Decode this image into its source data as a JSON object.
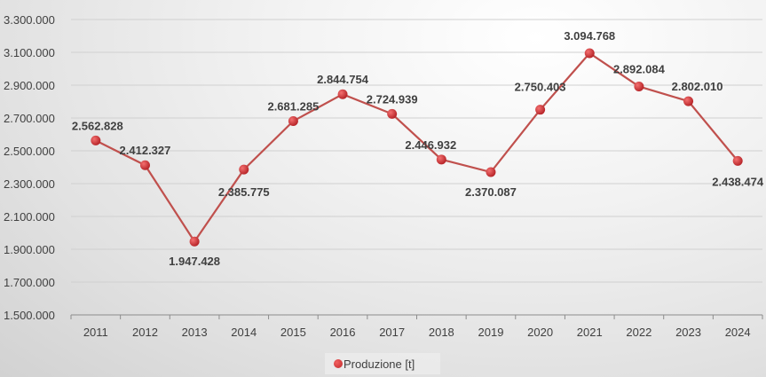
{
  "chart_data": {
    "type": "line",
    "title": "",
    "xlabel": "",
    "ylabel": "",
    "categories": [
      "2011",
      "2012",
      "2013",
      "2014",
      "2015",
      "2016",
      "2017",
      "2018",
      "2019",
      "2020",
      "2021",
      "2022",
      "2023",
      "2024"
    ],
    "series": [
      {
        "name": "Produzione [t]",
        "color": "#c0504d",
        "values": [
          2562828,
          2412327,
          1947428,
          2385775,
          2681285,
          2844754,
          2724939,
          2446932,
          2370087,
          2750403,
          3094768,
          2892084,
          2802010,
          2438474
        ],
        "labels": [
          "2.562.828",
          "2.412.327",
          "1.947.428",
          "2.385.775",
          "2.681.285",
          "2.844.754",
          "2.724.939",
          "2.446.932",
          "2.370.087",
          "2.750.403",
          "3.094.768",
          "2.892.084",
          "2.802.010",
          "2.438.474"
        ]
      }
    ],
    "ylim": [
      1500000,
      3300000
    ],
    "yticks": [
      1500000,
      1700000,
      1900000,
      2100000,
      2300000,
      2500000,
      2700000,
      2900000,
      3100000,
      3300000
    ],
    "ytick_labels": [
      "1.500.000",
      "1.700.000",
      "1.900.000",
      "2.100.000",
      "2.300.000",
      "2.500.000",
      "2.700.000",
      "2.900.000",
      "3.100.000",
      "3.300.000"
    ],
    "grid": true,
    "legend_position": "bottom"
  },
  "legend": {
    "label": "Produzione [t]"
  }
}
